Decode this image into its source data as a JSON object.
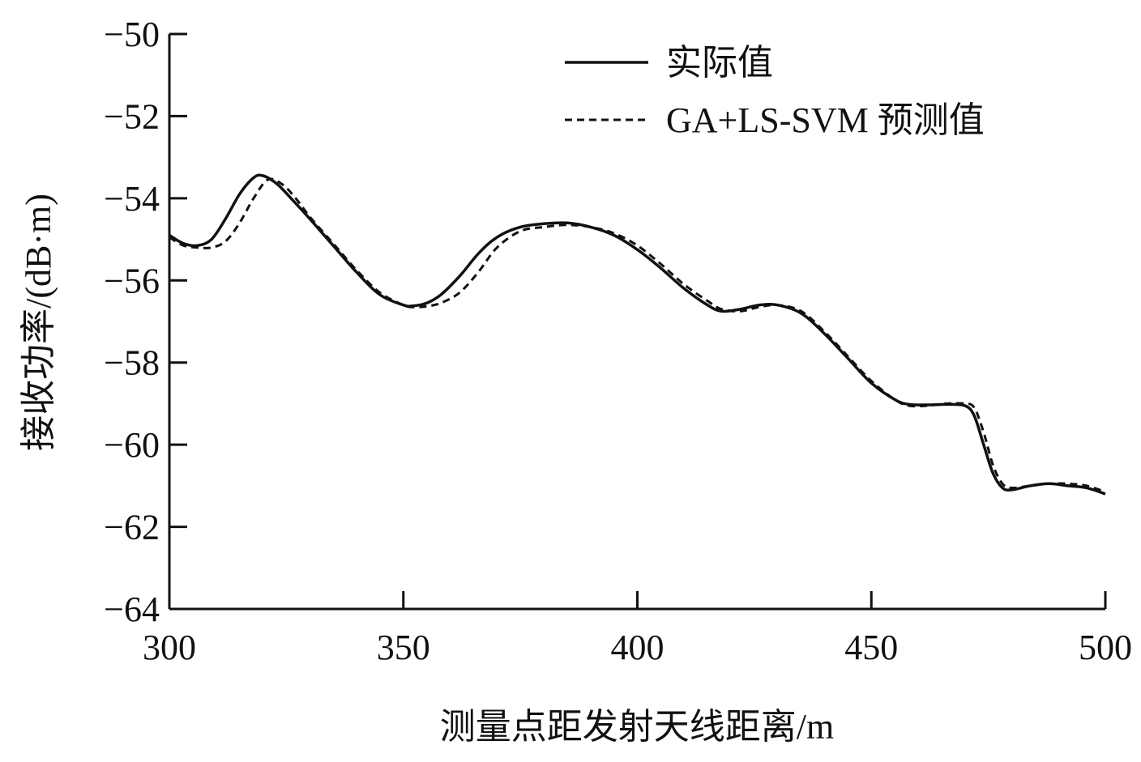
{
  "chart_data": {
    "type": "line",
    "title": "",
    "xlabel": "测量点距发射天线距离/m",
    "ylabel": "接收功率/(dB·m)",
    "xlim": [
      300,
      500
    ],
    "ylim": [
      -64,
      -50
    ],
    "xticks": [
      300,
      350,
      400,
      450,
      500
    ],
    "yticks": [
      -50,
      -52,
      -54,
      -56,
      -58,
      -60,
      -62,
      -64
    ],
    "xtick_labels": [
      "300",
      "350",
      "400",
      "450",
      "500"
    ],
    "ytick_labels": [
      "−50",
      "−52",
      "−54",
      "−56",
      "−58",
      "−60",
      "−62",
      "−64"
    ],
    "grid": false,
    "legend_position": "top-right",
    "series": [
      {
        "name": "实际值",
        "style": "solid",
        "x": [
          300,
          303,
          306,
          309,
          312,
          315,
          318,
          320,
          323,
          326,
          330,
          335,
          340,
          345,
          350,
          352,
          355,
          358,
          362,
          366,
          370,
          375,
          380,
          385,
          390,
          395,
          400,
          405,
          410,
          415,
          418,
          422,
          426,
          430,
          435,
          440,
          445,
          450,
          455,
          458,
          462,
          466,
          470,
          472,
          474,
          476,
          478,
          480,
          484,
          488,
          492,
          496,
          500
        ],
        "y": [
          -54.9,
          -55.1,
          -55.15,
          -55.0,
          -54.5,
          -53.9,
          -53.5,
          -53.45,
          -53.65,
          -54.0,
          -54.5,
          -55.15,
          -55.8,
          -56.35,
          -56.6,
          -56.62,
          -56.55,
          -56.35,
          -55.9,
          -55.35,
          -54.95,
          -54.7,
          -54.62,
          -54.6,
          -54.7,
          -54.9,
          -55.25,
          -55.7,
          -56.2,
          -56.6,
          -56.75,
          -56.7,
          -56.6,
          -56.6,
          -56.8,
          -57.3,
          -57.9,
          -58.5,
          -58.9,
          -59.02,
          -59.03,
          -59.02,
          -59.05,
          -59.3,
          -60.0,
          -60.7,
          -61.05,
          -61.1,
          -61.0,
          -60.95,
          -61.0,
          -61.05,
          -61.2
        ]
      },
      {
        "name": "GA+LS-SVM 预测值",
        "style": "dashed",
        "x": [
          300,
          303,
          306,
          309,
          312,
          315,
          318,
          321,
          324,
          327,
          330,
          335,
          340,
          345,
          350,
          352,
          355,
          358,
          362,
          366,
          370,
          375,
          380,
          385,
          390,
          395,
          400,
          405,
          410,
          415,
          418,
          422,
          426,
          430,
          435,
          440,
          445,
          450,
          455,
          458,
          462,
          466,
          470,
          472,
          474,
          476,
          478,
          480,
          484,
          488,
          492,
          496,
          500
        ],
        "y": [
          -54.95,
          -55.15,
          -55.2,
          -55.2,
          -55.05,
          -54.6,
          -54.0,
          -53.55,
          -53.65,
          -54.0,
          -54.45,
          -55.1,
          -55.75,
          -56.3,
          -56.6,
          -56.65,
          -56.63,
          -56.55,
          -56.3,
          -55.8,
          -55.2,
          -54.8,
          -54.7,
          -54.65,
          -54.7,
          -54.85,
          -55.15,
          -55.6,
          -56.1,
          -56.5,
          -56.7,
          -56.75,
          -56.65,
          -56.6,
          -56.75,
          -57.25,
          -57.85,
          -58.45,
          -58.9,
          -59.05,
          -59.05,
          -59.0,
          -59.0,
          -59.1,
          -59.7,
          -60.5,
          -60.95,
          -61.05,
          -61.0,
          -60.95,
          -60.95,
          -61.0,
          -61.15
        ]
      }
    ]
  }
}
